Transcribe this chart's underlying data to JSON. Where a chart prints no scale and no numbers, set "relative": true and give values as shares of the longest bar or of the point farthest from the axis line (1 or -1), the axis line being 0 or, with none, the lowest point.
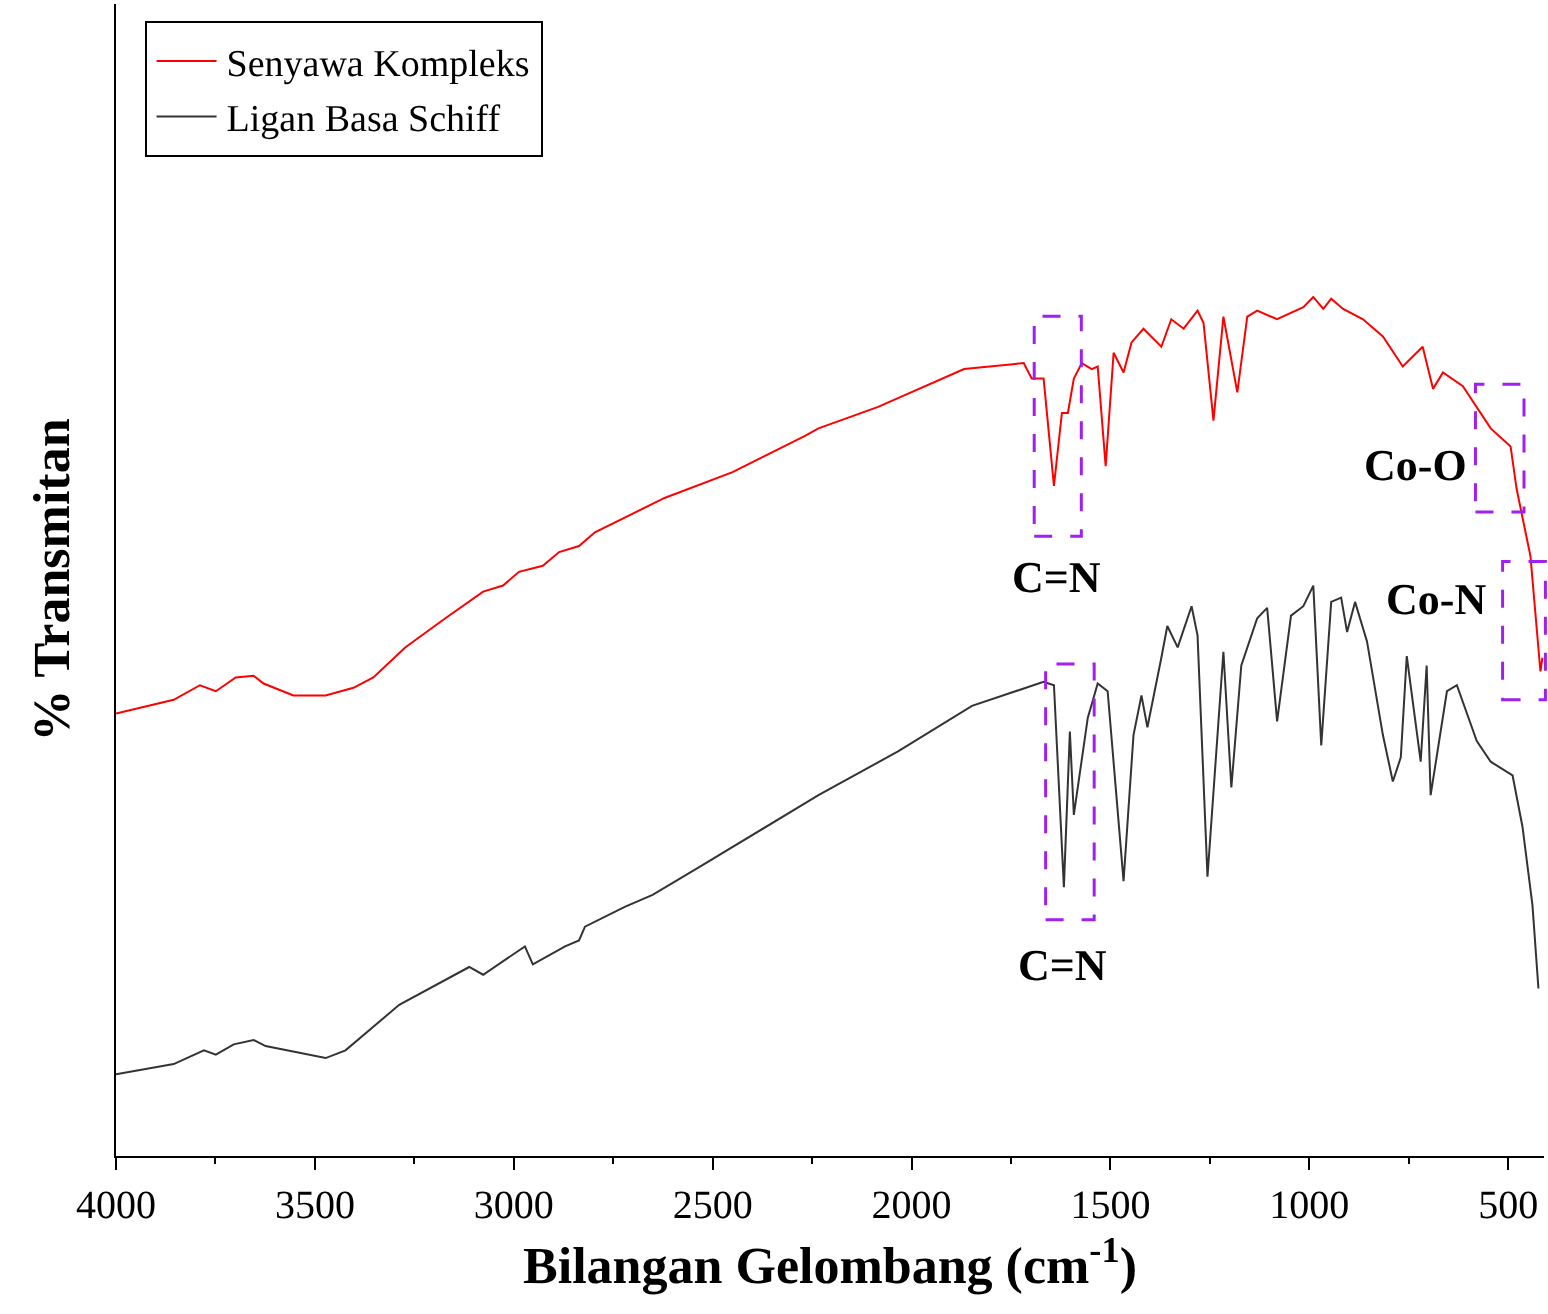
{
  "chart_data": {
    "type": "line",
    "relative": true,
    "xlabel": "Bilangan Gelombang (cm$^{-1}$)",
    "ylabel": "% Transmitan",
    "xlim": [
      4000,
      410
    ],
    "xticks": [
      4000,
      3500,
      3000,
      2500,
      2000,
      1500,
      1000,
      500
    ],
    "legend": "top left",
    "series": [
      {
        "name": "Senyawa Kompleks",
        "color": "#ff0000",
        "x": [
          4000,
          3855,
          3789,
          3749,
          3699,
          3654,
          3629,
          3554,
          3473,
          3403,
          3353,
          3273,
          3172,
          3077,
          3027,
          2987,
          2927,
          2886,
          2836,
          2796,
          2621,
          2450,
          2269,
          2234,
          2084,
          1868,
          1718,
          1698,
          1668,
          1642,
          1622,
          1607,
          1592,
          1572,
          1547,
          1532,
          1512,
          1492,
          1467,
          1447,
          1417,
          1372,
          1347,
          1316,
          1281,
          1266,
          1241,
          1216,
          1181,
          1156,
          1131,
          1081,
          1015,
          990,
          965,
          945,
          915,
          865,
          815,
          765,
          715,
          689,
          664,
          614,
          544,
          494,
          479,
          444,
          419,
          414
        ],
        "values": [
          0.515,
          0.531,
          0.548,
          0.541,
          0.557,
          0.559,
          0.55,
          0.536,
          0.536,
          0.545,
          0.557,
          0.592,
          0.626,
          0.657,
          0.664,
          0.68,
          0.687,
          0.703,
          0.71,
          0.726,
          0.766,
          0.796,
          0.838,
          0.847,
          0.872,
          0.916,
          0.923,
          0.905,
          0.905,
          0.78,
          0.865,
          0.865,
          0.905,
          0.923,
          0.916,
          0.919,
          0.803,
          0.935,
          0.912,
          0.947,
          0.963,
          0.942,
          0.974,
          0.963,
          0.984,
          0.97,
          0.856,
          0.977,
          0.889,
          0.977,
          0.984,
          0.974,
          0.988,
          1.0,
          0.986,
          0.998,
          0.986,
          0.974,
          0.954,
          0.919,
          0.942,
          0.893,
          0.912,
          0.896,
          0.847,
          0.826,
          0.777,
          0.698,
          0.564,
          0.58
        ]
      },
      {
        "name": "Ligan Basa Schiff",
        "color": "#333333",
        "x": [
          4000,
          3855,
          3779,
          3749,
          3704,
          3654,
          3624,
          3473,
          3423,
          3288,
          3112,
          3077,
          2972,
          2952,
          2871,
          2836,
          2821,
          2721,
          2651,
          2535,
          2234,
          2034,
          1848,
          1668,
          1642,
          1617,
          1602,
          1592,
          1557,
          1532,
          1507,
          1467,
          1442,
          1422,
          1407,
          1372,
          1357,
          1331,
          1296,
          1281,
          1256,
          1216,
          1196,
          1171,
          1131,
          1106,
          1081,
          1046,
          1015,
          990,
          970,
          945,
          920,
          905,
          885,
          855,
          815,
          790,
          770,
          755,
          720,
          705,
          695,
          654,
          629,
          579,
          544,
          489,
          464,
          439,
          424
        ],
        "values": [
          0.095,
          0.107,
          0.123,
          0.118,
          0.13,
          0.135,
          0.128,
          0.114,
          0.123,
          0.176,
          0.22,
          0.211,
          0.244,
          0.223,
          0.244,
          0.251,
          0.267,
          0.29,
          0.304,
          0.336,
          0.42,
          0.471,
          0.524,
          0.552,
          0.548,
          0.313,
          0.494,
          0.397,
          0.51,
          0.55,
          0.541,
          0.32,
          0.49,
          0.536,
          0.499,
          0.58,
          0.617,
          0.592,
          0.64,
          0.606,
          0.325,
          0.587,
          0.429,
          0.571,
          0.626,
          0.638,
          0.506,
          0.629,
          0.64,
          0.664,
          0.478,
          0.645,
          0.65,
          0.61,
          0.645,
          0.599,
          0.49,
          0.436,
          0.464,
          0.582,
          0.459,
          0.571,
          0.42,
          0.541,
          0.548,
          0.483,
          0.459,
          0.443,
          0.383,
          0.292,
          0.195
        ]
      }
    ],
    "annotations": [
      "C=N",
      "Co-O",
      "Co-N",
      "C=N"
    ]
  }
}
